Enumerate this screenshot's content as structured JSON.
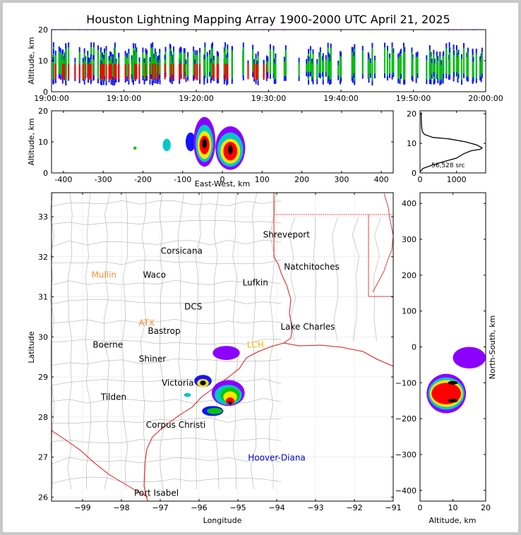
{
  "title": "Houston Lightning Mapping Array 1900-2000 UTC April 21, 2025",
  "colors": {
    "density": [
      "#8c00ff",
      "#1414ff",
      "#00c8c8",
      "#00c800",
      "#ffe600",
      "#ff8c00",
      "#ff0000",
      "#b40050",
      "#000000",
      "#ffffff"
    ],
    "map_county": "#a0a0a0",
    "map_coast_state": "#e01414",
    "station_orange": "#ff8c32",
    "station_green": "#64dc3c",
    "station_gold": "#ffb400",
    "label_blue": "#0000dc"
  },
  "chart_data": [
    {
      "id": "time_height",
      "type": "heatmap",
      "xlabel": "",
      "ylabel": "Altitude, km",
      "x_ticks": [
        "19:00:00",
        "19:10:00",
        "19:20:00",
        "19:30:00",
        "19:40:00",
        "19:50:00",
        "20:00:00"
      ],
      "xlim": [
        "19:00:00",
        "20:00:00"
      ],
      "ylim": [
        0,
        20
      ],
      "y_ticks": [
        0,
        10,
        20
      ],
      "description_shape": "source altitude vs time, densest 5-10 km"
    },
    {
      "id": "ew_height",
      "type": "heatmap",
      "xlabel": "East-West, km",
      "ylabel": "Altitude, km",
      "xlim": [
        -430,
        430
      ],
      "ylim": [
        0,
        20
      ],
      "x_ticks": [
        -400,
        -300,
        -200,
        -100,
        0,
        100,
        200,
        300,
        400
      ],
      "y_ticks": [
        0,
        10,
        20
      ],
      "cells": [
        {
          "x": -220,
          "y": 8,
          "w": 8,
          "h": 1,
          "level": 3
        },
        {
          "x": -140,
          "y": 9,
          "w": 20,
          "h": 4,
          "level": 2
        },
        {
          "x": -80,
          "y": 10,
          "w": 25,
          "h": 6,
          "level": 1
        },
        {
          "x": -45,
          "y": 10,
          "w": 55,
          "h": 16,
          "level": 0
        },
        {
          "x": -45,
          "y": 9.5,
          "w": 45,
          "h": 12,
          "level": 2
        },
        {
          "x": -45,
          "y": 9,
          "w": 35,
          "h": 9,
          "level": 4
        },
        {
          "x": -45,
          "y": 9,
          "w": 25,
          "h": 6,
          "level": 6
        },
        {
          "x": -45,
          "y": 9.5,
          "w": 12,
          "h": 3,
          "level": 8
        },
        {
          "x": 20,
          "y": 8,
          "w": 75,
          "h": 14,
          "level": 0
        },
        {
          "x": 20,
          "y": 7.5,
          "w": 65,
          "h": 11,
          "level": 2
        },
        {
          "x": 20,
          "y": 7,
          "w": 50,
          "h": 8,
          "level": 4
        },
        {
          "x": 20,
          "y": 7,
          "w": 35,
          "h": 6,
          "level": 6
        },
        {
          "x": 20,
          "y": 7.5,
          "w": 12,
          "h": 3,
          "level": 8
        }
      ]
    },
    {
      "id": "alt_hist",
      "type": "line",
      "xlim": [
        0,
        1800
      ],
      "ylim": [
        0,
        21
      ],
      "x_ticks": [
        0,
        1000
      ],
      "y_ticks": [
        0,
        10,
        20
      ],
      "annotation": "56,528 src",
      "points": [
        [
          30,
          20.5
        ],
        [
          40,
          16
        ],
        [
          60,
          14
        ],
        [
          120,
          13
        ],
        [
          350,
          12
        ],
        [
          800,
          11.5
        ],
        [
          1250,
          10.5
        ],
        [
          1550,
          9.5
        ],
        [
          1700,
          8.5
        ],
        [
          1650,
          8
        ],
        [
          1400,
          7.5
        ],
        [
          1200,
          6.5
        ],
        [
          1000,
          5
        ],
        [
          700,
          4
        ],
        [
          300,
          2.5
        ],
        [
          80,
          1.5
        ],
        [
          10,
          0.5
        ]
      ]
    },
    {
      "id": "plan_view",
      "type": "heatmap",
      "xlabel": "Longitude",
      "ylabel": "Latitude",
      "xlim": [
        -99.8,
        -91
      ],
      "ylim": [
        25.9,
        33.6
      ],
      "x_ticks": [
        -99,
        -98,
        -97,
        -96,
        -95,
        -94,
        -93,
        -92,
        -91
      ],
      "y_ticks": [
        26,
        27,
        28,
        29,
        30,
        31,
        32,
        33
      ],
      "cities": [
        {
          "name": "Shreveport",
          "lon": -93.75,
          "lat": 32.55,
          "color": "#000000"
        },
        {
          "name": "Corsicana",
          "lon": -96.45,
          "lat": 32.15,
          "color": "#000000"
        },
        {
          "name": "Natchitoches",
          "lon": -93.1,
          "lat": 31.75,
          "color": "#000000"
        },
        {
          "name": "Mullin",
          "lon": -98.45,
          "lat": 31.55,
          "color": "#ff8c32"
        },
        {
          "name": "Waco",
          "lon": -97.15,
          "lat": 31.55,
          "color": "#000000"
        },
        {
          "name": "Lufkin",
          "lon": -94.55,
          "lat": 31.35,
          "color": "#000000"
        },
        {
          "name": "DCS",
          "lon": -96.15,
          "lat": 30.75,
          "color": "#000000"
        },
        {
          "name": "ATX",
          "lon": -97.35,
          "lat": 30.35,
          "color": "#ff8c32"
        },
        {
          "name": "Bastrop",
          "lon": -96.9,
          "lat": 30.15,
          "color": "#000000"
        },
        {
          "name": "Lake Charles",
          "lon": -93.2,
          "lat": 30.25,
          "color": "#000000"
        },
        {
          "name": "Boerne",
          "lon": -98.35,
          "lat": 29.8,
          "color": "#000000"
        },
        {
          "name": "LCH",
          "lon": -94.55,
          "lat": 29.8,
          "color": "#ffb400"
        },
        {
          "name": "Shiner",
          "lon": -97.2,
          "lat": 29.45,
          "color": "#000000"
        },
        {
          "name": "Victoria",
          "lon": -96.55,
          "lat": 28.85,
          "color": "#000000"
        },
        {
          "name": "Tilden",
          "lon": -98.2,
          "lat": 28.5,
          "color": "#000000"
        },
        {
          "name": "Corpus Christi",
          "lon": -96.6,
          "lat": 27.8,
          "color": "#000000"
        },
        {
          "name": "Hoover-Diana",
          "lon": -94.0,
          "lat": 26.98,
          "color": "#0000dc"
        },
        {
          "name": "Port Isabel",
          "lon": -97.1,
          "lat": 26.1,
          "color": "#000000"
        }
      ],
      "cells": [
        {
          "x": -95.9,
          "y": 28.9,
          "w": 0.45,
          "h": 0.3,
          "level": 1
        },
        {
          "x": -95.9,
          "y": 28.85,
          "w": 0.3,
          "h": 0.2,
          "level": 4
        },
        {
          "x": -95.9,
          "y": 28.85,
          "w": 0.15,
          "h": 0.12,
          "level": 8
        },
        {
          "x": -95.25,
          "y": 28.6,
          "w": 0.85,
          "h": 0.65,
          "level": 0
        },
        {
          "x": -95.25,
          "y": 28.55,
          "w": 0.7,
          "h": 0.5,
          "level": 2
        },
        {
          "x": -95.2,
          "y": 28.55,
          "w": 0.5,
          "h": 0.38,
          "level": 3
        },
        {
          "x": -95.2,
          "y": 28.5,
          "w": 0.35,
          "h": 0.28,
          "level": 4
        },
        {
          "x": -95.2,
          "y": 28.4,
          "w": 0.22,
          "h": 0.18,
          "level": 6
        },
        {
          "x": -95.2,
          "y": 28.35,
          "w": 0.1,
          "h": 0.08,
          "level": 8
        },
        {
          "x": -95.65,
          "y": 28.15,
          "w": 0.55,
          "h": 0.25,
          "level": 1
        },
        {
          "x": -95.6,
          "y": 28.15,
          "w": 0.4,
          "h": 0.15,
          "level": 3
        },
        {
          "x": -96.3,
          "y": 28.55,
          "w": 0.18,
          "h": 0.1,
          "level": 2
        },
        {
          "x": -95.3,
          "y": 29.6,
          "w": 0.7,
          "h": 0.35,
          "level": 0
        }
      ]
    },
    {
      "id": "ns_height",
      "type": "heatmap",
      "xlabel": "Altitude, km",
      "ylabel": "North-South, km",
      "xlim": [
        0,
        20
      ],
      "ylim": [
        -430,
        430
      ],
      "x_ticks": [
        0,
        10,
        20
      ],
      "y_ticks": [
        -400,
        -300,
        -200,
        -100,
        0,
        100,
        200,
        300,
        400
      ],
      "cells": [
        {
          "x": 8,
          "y": -130,
          "w": 12,
          "h": 110,
          "level": 0
        },
        {
          "x": 8,
          "y": -130,
          "w": 11,
          "h": 90,
          "level": 2
        },
        {
          "x": 8,
          "y": -130,
          "w": 10,
          "h": 75,
          "level": 4
        },
        {
          "x": 8,
          "y": -130,
          "w": 9,
          "h": 60,
          "level": 6
        },
        {
          "x": 10,
          "y": -100,
          "w": 3,
          "h": 10,
          "level": 8
        },
        {
          "x": 10,
          "y": -150,
          "w": 3,
          "h": 10,
          "level": 8
        },
        {
          "x": 15,
          "y": -30,
          "w": 10,
          "h": 60,
          "level": 0
        }
      ]
    }
  ]
}
